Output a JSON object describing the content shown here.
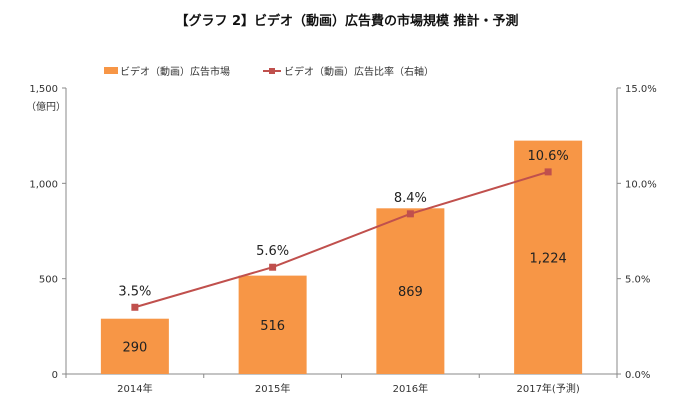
{
  "chart_data": {
    "type": "bar",
    "title": "【グラフ 2】ビデオ（動画）広告費の市場規模 推計・予測",
    "ylabel": "（億円）",
    "categories": [
      "2014年",
      "2015年",
      "2016年",
      "2017年(予測)"
    ],
    "ylim": [
      0,
      1500
    ],
    "yticks": [
      "0",
      "500",
      "1,000",
      "1,500"
    ],
    "y2lim": [
      0,
      15
    ],
    "y2ticks": [
      "0.0%",
      "5.0%",
      "10.0%",
      "15.0%"
    ],
    "series": [
      {
        "name": "ビデオ（動画）広告市場",
        "type": "bar",
        "axis": "left",
        "values": [
          290,
          516,
          869,
          1224
        ],
        "labels": [
          "290",
          "516",
          "869",
          "1,224"
        ],
        "color": "#F79646"
      },
      {
        "name": "ビデオ（動画）広告比率（右軸）",
        "type": "line",
        "axis": "right",
        "values": [
          3.5,
          5.6,
          8.4,
          10.6
        ],
        "labels": [
          "3.5%",
          "5.6%",
          "8.4%",
          "10.6%"
        ],
        "color": "#C0504D"
      }
    ],
    "legend_position": "top-left",
    "grid": false
  }
}
